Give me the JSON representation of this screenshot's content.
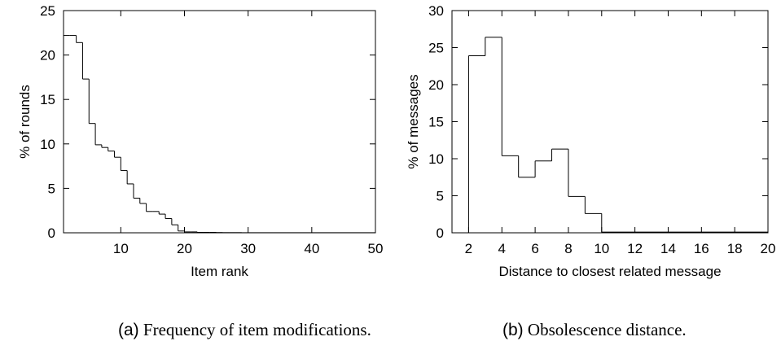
{
  "chart_data": [
    {
      "type": "line",
      "step": true,
      "xlabel": "Item rank",
      "ylabel": "% of rounds",
      "xlim": [
        1,
        50
      ],
      "ylim": [
        0,
        25
      ],
      "xticks": [
        10,
        20,
        30,
        40,
        50
      ],
      "yticks": [
        0,
        5,
        10,
        15,
        20,
        25
      ],
      "grid": false,
      "x": [
        1,
        2,
        3,
        4,
        5,
        6,
        7,
        8,
        9,
        10,
        11,
        12,
        13,
        14,
        15,
        16,
        17,
        18,
        19,
        20,
        21,
        22,
        23,
        24,
        25,
        26,
        27,
        28,
        29,
        30,
        31,
        32,
        33,
        34,
        35,
        36,
        37,
        38,
        39,
        40,
        41,
        42,
        43,
        44,
        45,
        46,
        47,
        48,
        49,
        50
      ],
      "values": [
        22.2,
        22.2,
        21.4,
        17.3,
        12.3,
        9.9,
        9.6,
        9.2,
        8.5,
        7.0,
        5.5,
        3.9,
        3.3,
        2.4,
        2.4,
        2.1,
        1.6,
        0.9,
        0.2,
        0.1,
        0.1,
        0.05,
        0.05,
        0.05,
        0.03,
        0.02,
        0.02,
        0.02,
        0.01,
        0.01,
        0.01,
        0.01,
        0.01,
        0.01,
        0.01,
        0.01,
        0.01,
        0.01,
        0.01,
        0.01,
        0.01,
        0.01,
        0.01,
        0.01,
        0.01,
        0.01,
        0.01,
        0.01,
        0.01,
        0.01
      ]
    },
    {
      "type": "bar",
      "step": true,
      "xlabel": "Distance to closest related message",
      "ylabel": "% of messages",
      "xlim": [
        1,
        20
      ],
      "ylim": [
        0,
        30
      ],
      "xticks": [
        2,
        4,
        6,
        8,
        10,
        12,
        14,
        16,
        18,
        20
      ],
      "yticks": [
        0,
        5,
        10,
        15,
        20,
        25,
        30
      ],
      "grid": false,
      "bins": [
        [
          2,
          3
        ],
        [
          3,
          4
        ],
        [
          4,
          5
        ],
        [
          5,
          6
        ],
        [
          6,
          7
        ],
        [
          7,
          8
        ],
        [
          8,
          9
        ],
        [
          9,
          10
        ],
        [
          10,
          20
        ]
      ],
      "values": [
        23.9,
        26.4,
        10.4,
        7.5,
        9.7,
        11.3,
        4.9,
        2.6,
        0.1
      ]
    }
  ],
  "captions": [
    {
      "label": "(a)",
      "text": " Frequency of item modifications."
    },
    {
      "label": "(b)",
      "text": " Obsolescence distance."
    }
  ]
}
